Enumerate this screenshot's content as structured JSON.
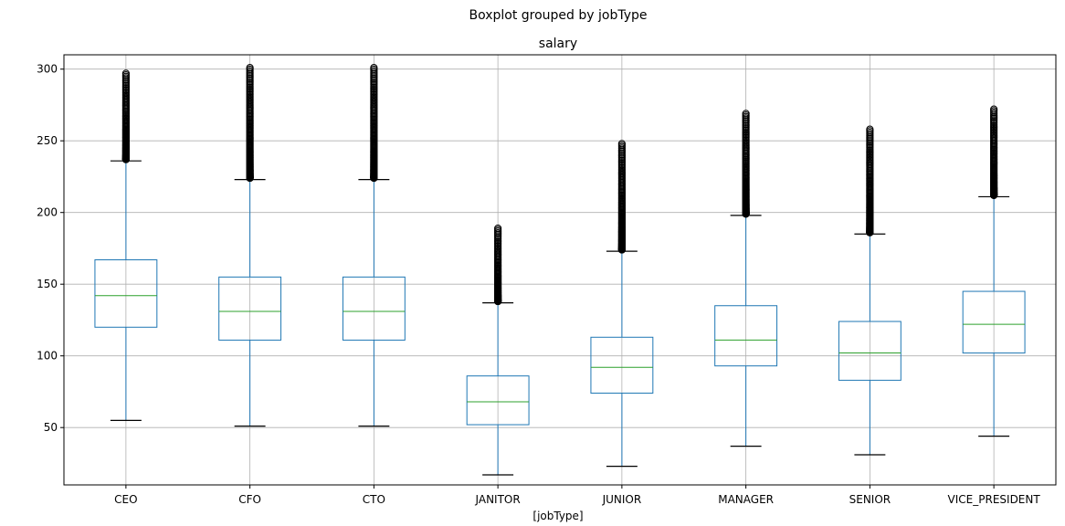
{
  "suptitle": "Boxplot grouped by jobType",
  "chart_data": {
    "type": "box",
    "title": "salary",
    "xlabel": "[jobType]",
    "ylabel": "",
    "ylim": [
      10,
      310
    ],
    "yticks": [
      50,
      100,
      150,
      200,
      250,
      300
    ],
    "grid": true,
    "categories": [
      "CEO",
      "CFO",
      "CTO",
      "JANITOR",
      "JUNIOR",
      "MANAGER",
      "SENIOR",
      "VICE_PRESIDENT"
    ],
    "boxes": [
      {
        "label": "CEO",
        "whisker_low": 55,
        "q1": 120,
        "median": 142,
        "q3": 167,
        "whisker_high": 236,
        "outlier_max": 297
      },
      {
        "label": "CFO",
        "whisker_low": 51,
        "q1": 111,
        "median": 131,
        "q3": 155,
        "whisker_high": 223,
        "outlier_max": 301
      },
      {
        "label": "CTO",
        "whisker_low": 51,
        "q1": 111,
        "median": 131,
        "q3": 155,
        "whisker_high": 223,
        "outlier_max": 301
      },
      {
        "label": "JANITOR",
        "whisker_low": 17,
        "q1": 52,
        "median": 68,
        "q3": 86,
        "whisker_high": 137,
        "outlier_max": 189
      },
      {
        "label": "JUNIOR",
        "whisker_low": 23,
        "q1": 74,
        "median": 92,
        "q3": 113,
        "whisker_high": 173,
        "outlier_max": 248
      },
      {
        "label": "MANAGER",
        "whisker_low": 37,
        "q1": 93,
        "median": 111,
        "q3": 135,
        "whisker_high": 198,
        "outlier_max": 269
      },
      {
        "label": "SENIOR",
        "whisker_low": 31,
        "q1": 83,
        "median": 102,
        "q3": 124,
        "whisker_high": 185,
        "outlier_max": 258
      },
      {
        "label": "VICE_PRESIDENT",
        "whisker_low": 44,
        "q1": 102,
        "median": 122,
        "q3": 145,
        "whisker_high": 211,
        "outlier_max": 272
      }
    ],
    "colors": {
      "box": "#1f77b4",
      "median": "#2ca02c",
      "cap": "#000000",
      "grid": "#b0b0b0",
      "outlier": "#000000"
    }
  }
}
